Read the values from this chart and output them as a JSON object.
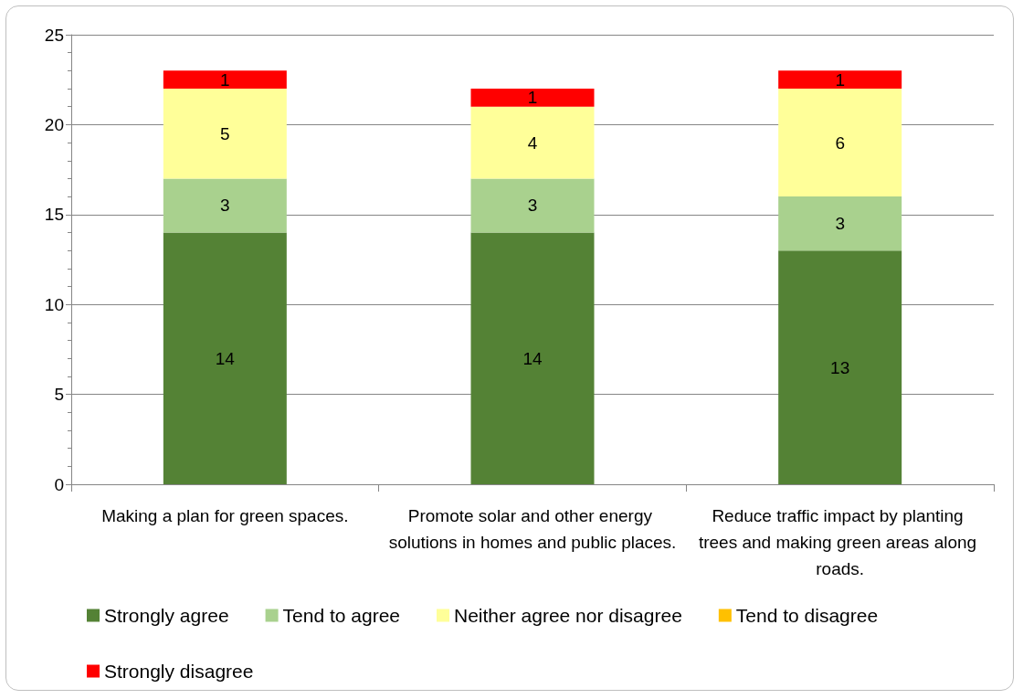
{
  "chart_data": {
    "type": "bar",
    "stacked": true,
    "categories": [
      "Making a plan for green spaces.",
      "Promote solar and other energy solutions in homes and public places.",
      "Reduce traffic impact by planting trees and making green areas along roads."
    ],
    "series": [
      {
        "name": "Strongly agree",
        "color": "#548235",
        "values": [
          14,
          14,
          13
        ]
      },
      {
        "name": "Tend to agree",
        "color": "#a9d18e",
        "values": [
          3,
          3,
          3
        ]
      },
      {
        "name": "Neither agree nor disagree",
        "color": "#ffff99",
        "values": [
          5,
          4,
          6
        ]
      },
      {
        "name": "Tend to disagree",
        "color": "#ffc000",
        "values": [
          null,
          null,
          null
        ]
      },
      {
        "name": "Strongly disagree",
        "color": "#ff0000",
        "values": [
          1,
          1,
          1
        ]
      }
    ],
    "ylim": [
      0,
      25
    ],
    "yticks": [
      0,
      5,
      10,
      15,
      20,
      25
    ],
    "grid": "y",
    "legend": "bottom",
    "data_labels": true
  }
}
